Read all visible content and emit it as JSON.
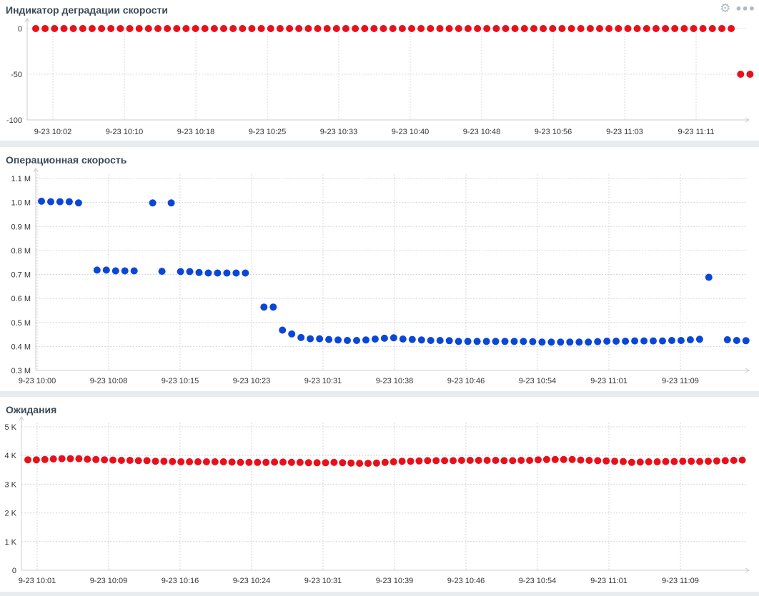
{
  "colors": {
    "red_series": "#e8101a",
    "blue_series": "#0a47d8",
    "grid": "#d4d8dc",
    "axis": "#c8ccd0"
  },
  "toolbar": {
    "settings_icon": "gear-icon",
    "more_icon": "more-icon"
  },
  "chart_data": [
    {
      "type": "scatter",
      "title": "Индикатор деградации скорости",
      "ylim": [
        -100,
        0
      ],
      "y_ticks": [
        "0",
        "-50",
        "-100"
      ],
      "x_ticks": [
        "9-23 10:02",
        "9-23 10:10",
        "9-23 10:18",
        "9-23 10:25",
        "9-23 10:33",
        "9-23 10:40",
        "9-23 10:48",
        "9-23 10:56",
        "9-23 11:03",
        "9-23 11:11"
      ],
      "grid": true,
      "series": [
        {
          "color": "#e8101a",
          "values": [
            0,
            0,
            0,
            0,
            0,
            0,
            0,
            0,
            0,
            0,
            0,
            0,
            0,
            0,
            0,
            0,
            0,
            0,
            0,
            0,
            0,
            0,
            0,
            0,
            0,
            0,
            0,
            0,
            0,
            0,
            0,
            0,
            0,
            0,
            0,
            0,
            0,
            0,
            0,
            0,
            0,
            0,
            0,
            0,
            0,
            0,
            0,
            0,
            0,
            0,
            0,
            0,
            0,
            0,
            0,
            0,
            0,
            0,
            0,
            0,
            0,
            0,
            0,
            0,
            0,
            0,
            0,
            0,
            0,
            0,
            0,
            0,
            0,
            0,
            0,
            -50,
            -50,
            -50
          ]
        }
      ]
    },
    {
      "type": "scatter",
      "title": "Операционная скорость",
      "ylim": [
        0.3,
        1.1
      ],
      "y_ticks": [
        "1.1 M",
        "1.0 M",
        "0.9 M",
        "0.8 M",
        "0.7 M",
        "0.6 M",
        "0.5 M",
        "0.4 M",
        "0.3 M"
      ],
      "x_ticks": [
        "9-23 10:00",
        "9-23 10:08",
        "9-23 10:15",
        "9-23 10:23",
        "9-23 10:31",
        "9-23 10:38",
        "9-23 10:46",
        "9-23 10:54",
        "9-23 11:01",
        "9-23 11:09"
      ],
      "grid": true,
      "series": [
        {
          "color": "#0a47d8",
          "values": [
            1.005,
            1.003,
            1.003,
            1.003,
            0.998,
            null,
            0.718,
            0.718,
            0.715,
            0.715,
            0.715,
            null,
            0.998,
            0.713,
            0.998,
            0.712,
            0.712,
            0.708,
            0.706,
            0.706,
            0.706,
            0.706,
            0.706,
            null,
            0.564,
            0.564,
            0.468,
            0.452,
            0.437,
            0.432,
            0.432,
            0.429,
            0.427,
            0.425,
            0.425,
            0.427,
            0.431,
            0.434,
            0.436,
            0.431,
            0.429,
            0.427,
            0.425,
            0.425,
            0.424,
            0.421,
            0.421,
            0.421,
            0.421,
            0.421,
            0.421,
            0.421,
            0.421,
            0.42,
            0.418,
            0.418,
            0.418,
            0.418,
            0.418,
            0.418,
            0.42,
            0.422,
            0.422,
            0.422,
            0.423,
            0.423,
            0.423,
            0.423,
            0.425,
            0.425,
            0.428,
            0.43,
            0.688,
            null,
            0.428,
            0.425,
            0.424,
            0.425,
            0.428,
            0.44
          ]
        }
      ]
    },
    {
      "type": "scatter",
      "title": "Ожидания",
      "ylim": [
        0,
        5
      ],
      "y_ticks": [
        "5 K",
        "4 K",
        "3 K",
        "2 K",
        "1 K",
        "0"
      ],
      "x_ticks": [
        "9-23 10:01",
        "9-23 10:09",
        "9-23 10:16",
        "9-23 10:24",
        "9-23 10:31",
        "9-23 10:39",
        "9-23 10:46",
        "9-23 10:54",
        "9-23 11:01",
        "9-23 11:09"
      ],
      "grid": true,
      "series": [
        {
          "color": "#e8101a",
          "values": [
            3.85,
            3.85,
            3.86,
            3.88,
            3.89,
            3.89,
            3.89,
            3.87,
            3.86,
            3.85,
            3.84,
            3.83,
            3.83,
            3.82,
            3.82,
            3.8,
            3.8,
            3.79,
            3.78,
            3.78,
            3.78,
            3.78,
            3.78,
            3.78,
            3.77,
            3.76,
            3.76,
            3.76,
            3.76,
            3.77,
            3.77,
            3.76,
            3.76,
            3.75,
            3.75,
            3.75,
            3.76,
            3.75,
            3.74,
            3.73,
            3.73,
            3.74,
            3.76,
            3.78,
            3.8,
            3.8,
            3.81,
            3.82,
            3.82,
            3.82,
            3.82,
            3.83,
            3.83,
            3.83,
            3.83,
            3.83,
            3.82,
            3.82,
            3.83,
            3.83,
            3.85,
            3.86,
            3.86,
            3.86,
            3.86,
            3.84,
            3.83,
            3.82,
            3.81,
            3.8,
            3.79,
            3.76,
            3.77,
            3.78,
            3.78,
            3.79,
            3.79,
            3.8,
            3.8,
            3.79,
            3.8,
            3.81,
            3.82,
            3.83,
            3.84
          ]
        }
      ]
    }
  ]
}
